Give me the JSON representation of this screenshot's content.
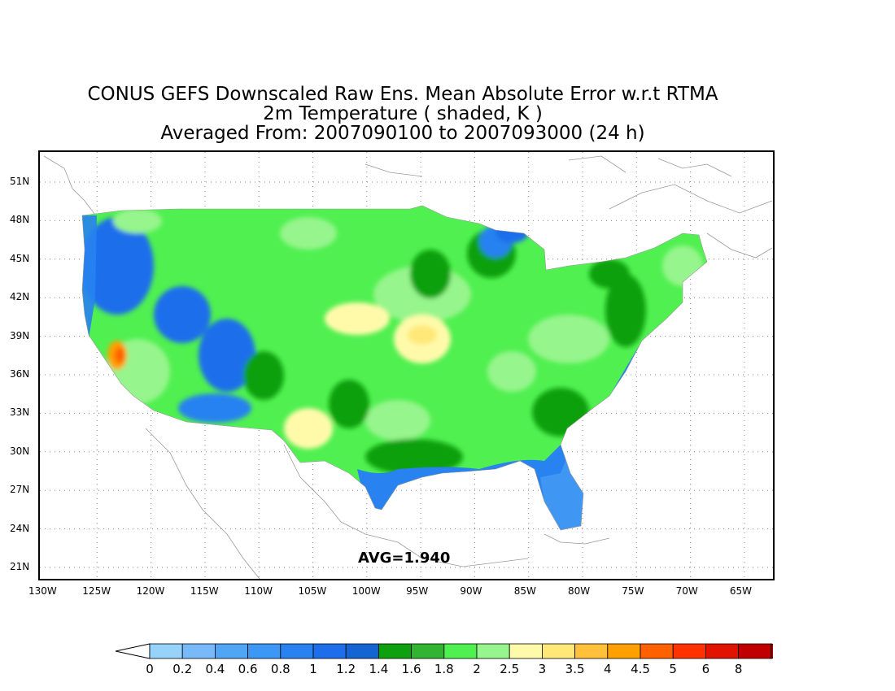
{
  "title": {
    "line1": "CONUS GEFS Downscaled Raw Ens. Mean Absolute Error w.r.t RTMA",
    "line2": "2m Temperature ( shaded, K )",
    "line3": "Averaged From: 2007090100 to 2007093000 (24 h)"
  },
  "map": {
    "lon_labels": [
      "130W",
      "125W",
      "120W",
      "115W",
      "110W",
      "105W",
      "100W",
      "95W",
      "90W",
      "85W",
      "80W",
      "75W",
      "70W",
      "65W"
    ],
    "lat_labels": [
      "51N",
      "48N",
      "45N",
      "42N",
      "39N",
      "36N",
      "33N",
      "30N",
      "27N",
      "24N",
      "21N"
    ],
    "avg_label": "AVG=1.940",
    "grid": "dotted"
  },
  "colorbar": {
    "levels": [
      "0",
      "0.2",
      "0.4",
      "0.6",
      "0.8",
      "1",
      "1.2",
      "1.4",
      "1.6",
      "1.8",
      "2",
      "2.5",
      "3",
      "3.5",
      "4",
      "4.5",
      "5",
      "6",
      "8"
    ],
    "colors": [
      "#96d2fa",
      "#78b9fa",
      "#50a5f5",
      "#3c97f5",
      "#2882f0",
      "#1e6eeb",
      "#1464d2",
      "#0fa00f",
      "#32b432",
      "#50f050",
      "#96f58c",
      "#fffaaa",
      "#ffe878",
      "#ffc03c",
      "#ffa000",
      "#ff6000",
      "#ff3200",
      "#e11400",
      "#c00000"
    ],
    "under_color": "#ffffff",
    "over_color": "#a50000"
  }
}
